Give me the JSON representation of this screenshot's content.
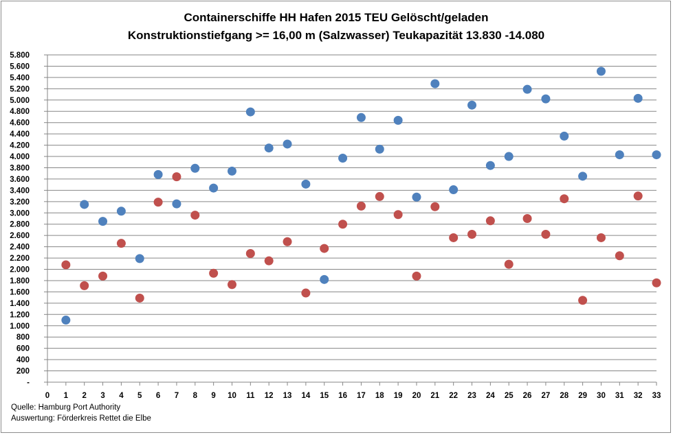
{
  "chart_data": {
    "type": "scatter",
    "title": [
      "Containerschiffe HH Hafen 2015 TEU Gelöscht/geladen",
      "Konstruktionstiefgang >= 16,00 m (Salzwasser)   Teukapazität   13.830 -14.080"
    ],
    "xlabel": "",
    "ylabel": "",
    "xlim": [
      0,
      33
    ],
    "ylim": [
      0,
      5800
    ],
    "x_ticks": [
      "0",
      "1",
      "2",
      "3",
      "4",
      "5",
      "6",
      "7",
      "8",
      "9",
      "10",
      "11",
      "12",
      "13",
      "14",
      "15",
      "16",
      "17",
      "18",
      "19",
      "20",
      "21",
      "22",
      "23",
      "24",
      "25",
      "26",
      "27",
      "28",
      "29",
      "30",
      "31",
      "32",
      "33"
    ],
    "y_ticks": [
      "-",
      "200",
      "400",
      "600",
      "800",
      "1.000",
      "1.200",
      "1.400",
      "1.600",
      "1.800",
      "2.000",
      "2.200",
      "2.400",
      "2.600",
      "2.800",
      "3.000",
      "3.200",
      "3.400",
      "3.600",
      "3.800",
      "4.000",
      "4.200",
      "4.400",
      "4.600",
      "4.800",
      "5.000",
      "5.200",
      "5.400",
      "5.600",
      "5.800"
    ],
    "grid": true,
    "legend": "none",
    "series": [
      {
        "color": "#4f81bd",
        "x": [
          1,
          2,
          3,
          4,
          5,
          6,
          7,
          8,
          9,
          10,
          11,
          12,
          13,
          14,
          15,
          16,
          17,
          18,
          19,
          20,
          21,
          22,
          23,
          24,
          25,
          26,
          27,
          28,
          29,
          30,
          31,
          32,
          33
        ],
        "y": [
          1100,
          3150,
          2850,
          3030,
          2190,
          3680,
          3160,
          3790,
          3440,
          3740,
          4790,
          4150,
          4220,
          3510,
          1820,
          3970,
          4690,
          4130,
          4640,
          3280,
          5290,
          3410,
          4910,
          3840,
          4000,
          5190,
          5020,
          4360,
          3650,
          5510,
          4030,
          5030,
          4030
        ]
      },
      {
        "color": "#c0504d",
        "x": [
          1,
          2,
          3,
          4,
          5,
          6,
          7,
          8,
          9,
          10,
          11,
          12,
          13,
          14,
          15,
          16,
          17,
          18,
          19,
          20,
          21,
          22,
          23,
          24,
          25,
          26,
          27,
          28,
          29,
          30,
          31,
          32,
          33
        ],
        "y": [
          2080,
          1710,
          1880,
          2460,
          1490,
          3190,
          3640,
          2960,
          1930,
          1730,
          2280,
          2150,
          2490,
          1580,
          2370,
          2800,
          3120,
          3290,
          2970,
          1880,
          3110,
          2560,
          2620,
          2860,
          2090,
          2900,
          2620,
          3250,
          1450,
          2560,
          2240,
          3300,
          1760
        ]
      }
    ]
  },
  "footer": {
    "source": "Quelle: Hamburg Port Authority",
    "analysis": "Auswertung: Förderkreis Rettet die Elbe"
  }
}
